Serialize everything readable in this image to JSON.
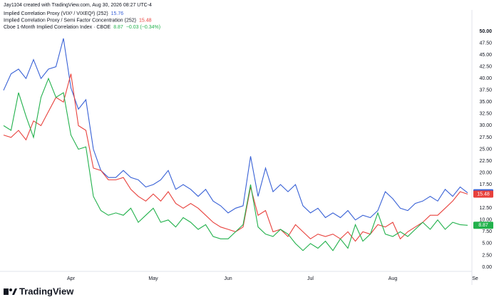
{
  "header": "Jay1104 created with TradingView.com, Aug 30, 2026 08:27 UTC-4",
  "logo": "TradingView",
  "chart_data": {
    "type": "line",
    "categories": [
      null,
      null,
      null,
      null,
      null,
      null,
      null,
      null,
      null,
      "Apr",
      null,
      null,
      null,
      null,
      null,
      null,
      null,
      null,
      null,
      null,
      "May",
      null,
      null,
      null,
      null,
      null,
      null,
      null,
      null,
      null,
      "Jun",
      null,
      null,
      null,
      null,
      null,
      null,
      null,
      null,
      null,
      null,
      "Jul",
      null,
      null,
      null,
      null,
      null,
      null,
      null,
      null,
      null,
      null,
      "Aug",
      null,
      null,
      null,
      null,
      null,
      null,
      null,
      null,
      null,
      null,
      "Se"
    ],
    "series": [
      {
        "name": "Implied Correlation Proxy (VIX² / VIXEQ²) (252)",
        "color": "#3861d6",
        "values": [
          37.5,
          41,
          42,
          40,
          44,
          40,
          42,
          42.5,
          48.5,
          38,
          33.5,
          35.5,
          25,
          20.5,
          19,
          19,
          20.5,
          19,
          18.5,
          17,
          17.5,
          18.5,
          20.5,
          16.5,
          17.5,
          16.5,
          15,
          16.5,
          14,
          13,
          11.5,
          12.5,
          13,
          23.5,
          15,
          21,
          16,
          17.5,
          16,
          17.5,
          13,
          11.5,
          12.5,
          10.5,
          11.5,
          10.5,
          12,
          10,
          11,
          10.5,
          12,
          16,
          14.5,
          12.5,
          12,
          13.5,
          14,
          15,
          14,
          16.5,
          15,
          17,
          15.76,
          null
        ]
      },
      {
        "name": "Implied Correlation Proxy / Semi Factor Concentration (252)",
        "color": "#e8413c",
        "values": [
          28,
          27.5,
          29,
          27,
          31,
          30,
          33,
          36,
          35,
          41,
          30,
          29,
          21,
          20.5,
          18.5,
          18.5,
          19,
          16.5,
          15,
          14,
          15.5,
          14,
          16,
          13.5,
          12.5,
          13.5,
          12.5,
          11,
          9.5,
          8.5,
          8,
          7.5,
          8.5,
          17,
          11,
          12,
          7.5,
          8,
          6.5,
          9,
          7.5,
          6,
          7,
          6.5,
          7,
          6,
          7.5,
          5.5,
          7.5,
          7,
          9,
          8.5,
          9.5,
          6,
          7.5,
          8.5,
          9.5,
          11,
          11,
          12.5,
          14,
          16,
          15.48,
          null
        ]
      },
      {
        "name": "Cboe 1-Month Implied Correlation Index · CBOE",
        "color": "#22b14c",
        "change": "−0.03 (−0.34%)",
        "values": [
          30,
          29,
          37,
          32,
          27.5,
          36,
          40,
          36,
          37,
          28,
          25,
          25.5,
          15,
          12,
          11,
          11.5,
          11,
          12.5,
          9.5,
          11,
          12.5,
          9.5,
          10,
          8.5,
          10.5,
          9.5,
          8,
          9,
          6.5,
          6,
          6,
          7.5,
          9,
          17.5,
          8.5,
          7,
          6.5,
          8,
          7,
          5,
          3.5,
          5,
          4,
          5.5,
          3.5,
          6,
          4,
          9,
          5.5,
          7,
          11.5,
          7,
          6.5,
          7.5,
          6.5,
          8,
          9.5,
          8,
          10,
          8,
          9.5,
          9,
          8.87,
          null
        ]
      }
    ],
    "ylim": [
      0,
      50
    ],
    "yticks": [
      {
        "value": 0,
        "label": "0.00"
      },
      {
        "value": 2.5,
        "label": "2.50"
      },
      {
        "value": 5,
        "label": "5.00"
      },
      {
        "value": 7.5,
        "label": "7.50"
      },
      {
        "value": 10,
        "label": "10.00"
      },
      {
        "value": 12.5,
        "label": "12.50"
      },
      {
        "value": 15,
        "label": "15.00"
      },
      {
        "value": 17.5,
        "label": "17.50"
      },
      {
        "value": 20,
        "label": "20.00"
      },
      {
        "value": 22.5,
        "label": "22.50"
      },
      {
        "value": 25,
        "label": "25.00"
      },
      {
        "value": 27.5,
        "label": "27.50"
      },
      {
        "value": 30,
        "label": "30.00"
      },
      {
        "value": 32.5,
        "label": "32.50"
      },
      {
        "value": 35,
        "label": "35.00"
      },
      {
        "value": 37.5,
        "label": "37.50"
      },
      {
        "value": 40,
        "label": "40.00"
      },
      {
        "value": 42.5,
        "label": "42.50"
      },
      {
        "value": 45,
        "label": "45.00"
      },
      {
        "value": 47.5,
        "label": "47.50"
      },
      {
        "value": 50,
        "label": "50.00"
      }
    ]
  }
}
